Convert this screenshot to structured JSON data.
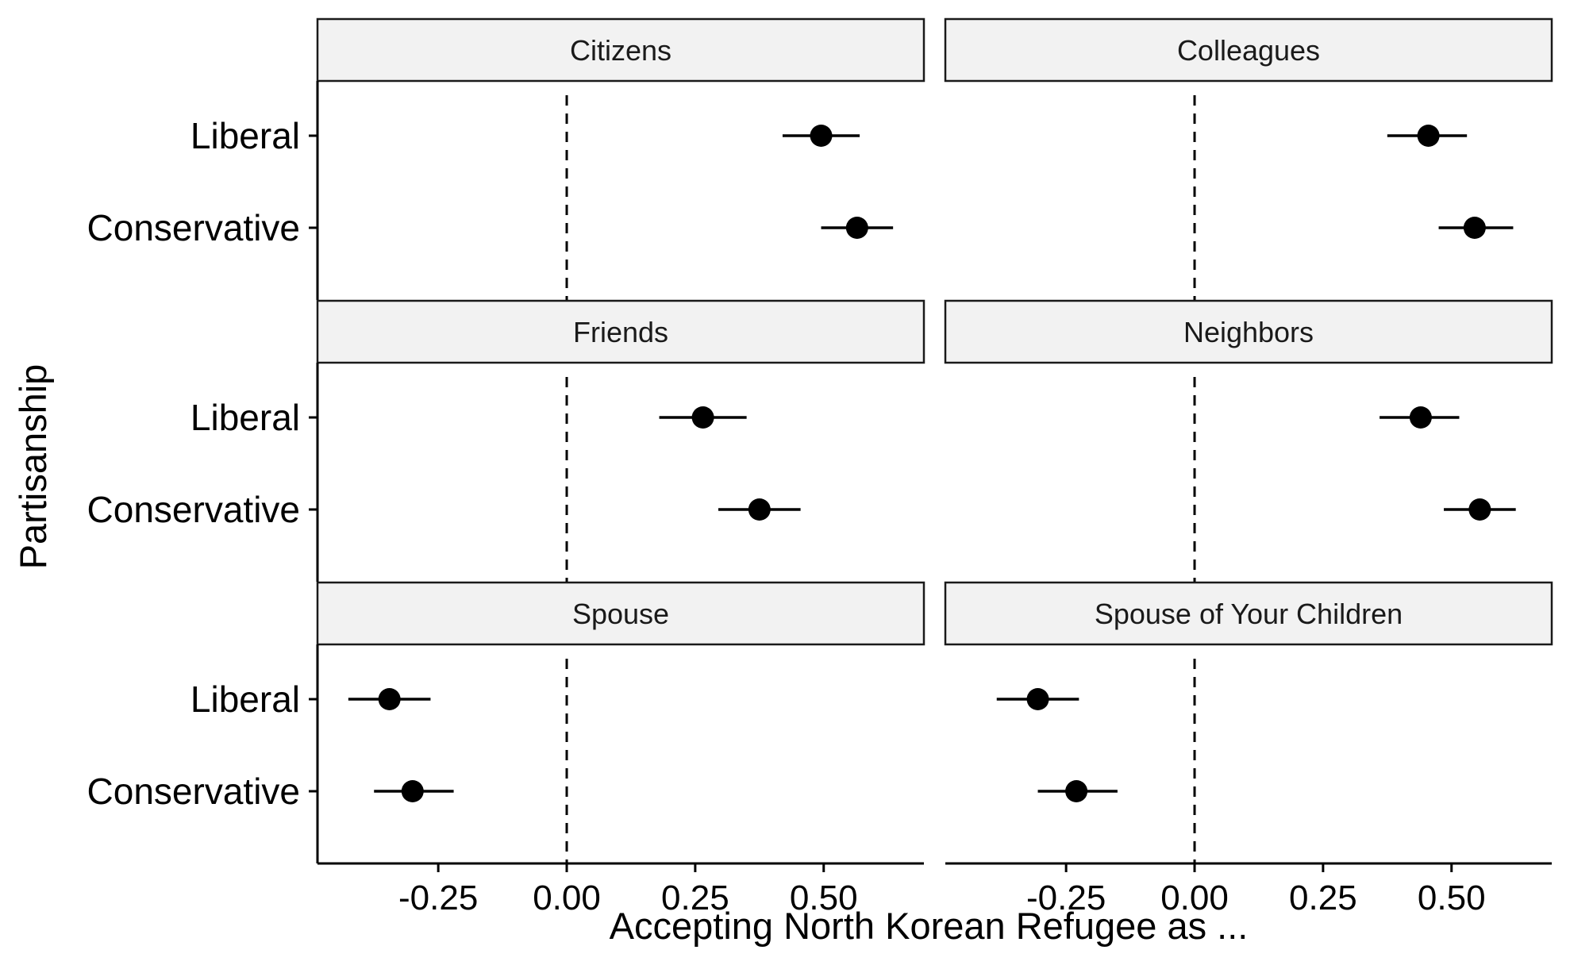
{
  "chart_data": {
    "type": "dot-whisker",
    "title": "",
    "xlabel": "Accepting North Korean Refugee as ...",
    "ylabel": "Partisanship",
    "xlim": [
      -0.485,
      0.695
    ],
    "x_ticks": [
      -0.25,
      0.0,
      0.25,
      0.5
    ],
    "x_tick_labels": [
      "-0.25",
      "0.00",
      "0.25",
      "0.50"
    ],
    "categories": [
      "Liberal",
      "Conservative"
    ],
    "reference_line": 0,
    "grid": false,
    "point_color": "#000000",
    "strip_fill": "#f2f2f2",
    "panels": [
      {
        "name": "Citizens",
        "points": [
          {
            "category": "Liberal",
            "estimate": 0.495,
            "lower": 0.42,
            "upper": 0.57
          },
          {
            "category": "Conservative",
            "estimate": 0.565,
            "lower": 0.495,
            "upper": 0.635
          }
        ]
      },
      {
        "name": "Colleagues",
        "points": [
          {
            "category": "Liberal",
            "estimate": 0.455,
            "lower": 0.375,
            "upper": 0.53
          },
          {
            "category": "Conservative",
            "estimate": 0.545,
            "lower": 0.475,
            "upper": 0.62
          }
        ]
      },
      {
        "name": "Friends",
        "points": [
          {
            "category": "Liberal",
            "estimate": 0.265,
            "lower": 0.18,
            "upper": 0.35
          },
          {
            "category": "Conservative",
            "estimate": 0.375,
            "lower": 0.295,
            "upper": 0.455
          }
        ]
      },
      {
        "name": "Neighbors",
        "points": [
          {
            "category": "Liberal",
            "estimate": 0.44,
            "lower": 0.36,
            "upper": 0.515
          },
          {
            "category": "Conservative",
            "estimate": 0.555,
            "lower": 0.485,
            "upper": 0.625
          }
        ]
      },
      {
        "name": "Spouse",
        "points": [
          {
            "category": "Liberal",
            "estimate": -0.345,
            "lower": -0.425,
            "upper": -0.265
          },
          {
            "category": "Conservative",
            "estimate": -0.3,
            "lower": -0.375,
            "upper": -0.22
          }
        ]
      },
      {
        "name": "Spouse of Your Children",
        "points": [
          {
            "category": "Liberal",
            "estimate": -0.305,
            "lower": -0.385,
            "upper": -0.225
          },
          {
            "category": "Conservative",
            "estimate": -0.23,
            "lower": -0.305,
            "upper": -0.15
          }
        ]
      }
    ]
  }
}
